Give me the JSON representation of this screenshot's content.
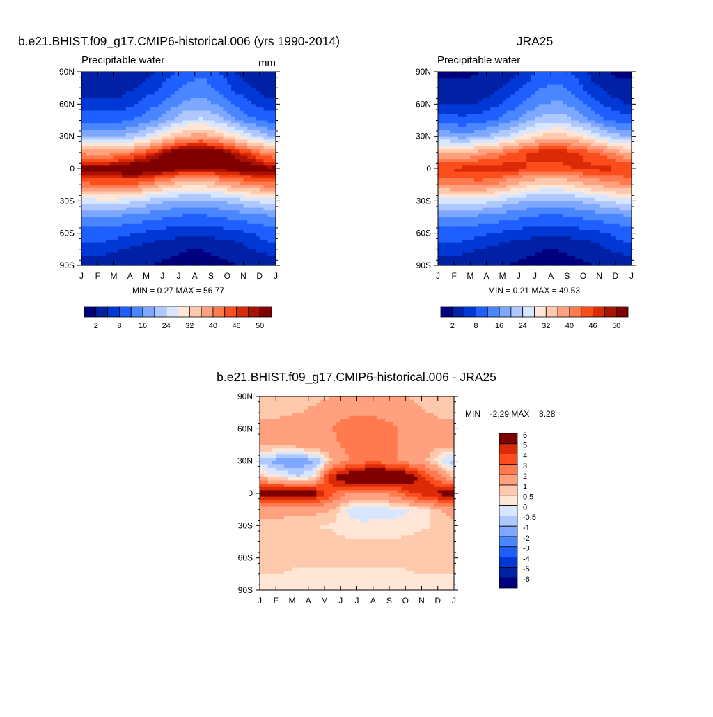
{
  "colors": {
    "scale": [
      "#00007f",
      "#0020a6",
      "#0038d6",
      "#1f5fff",
      "#4a86ff",
      "#7ea8ff",
      "#afc8ff",
      "#d8e7ff",
      "#ffe6d6",
      "#ffc9ad",
      "#ffa07f",
      "#ff7b4f",
      "#fb4e1c",
      "#dc2a06",
      "#ac1202",
      "#7f0000"
    ],
    "diff_scale": [
      "#00007f",
      "#0020a6",
      "#0038d6",
      "#1f5fff",
      "#4a86ff",
      "#7ea8ff",
      "#afc8ff",
      "#d8e7ff",
      "#ffe6d6",
      "#ffc9ad",
      "#ffa07f",
      "#ff7b4f",
      "#fb4e1c",
      "#dc2a06",
      "#7f0000"
    ]
  },
  "panels": {
    "model": {
      "title": "b.e21.BHIST.f09_g17.CMIP6-historical.006 (yrs 1990-2014)",
      "variable": "Precipitable water",
      "units": "mm",
      "minmax": "MIN =   0.27 MAX =  56.77"
    },
    "obs": {
      "title": "JRA25",
      "variable": "Precipitable water",
      "minmax": "MIN =   0.21 MAX =  49.53"
    },
    "diff": {
      "title": "b.e21.BHIST.f09_g17.CMIP6-historical.006 - JRA25",
      "minmax": "MIN =  -2.29 MAX =   8.28"
    }
  },
  "chart_data": [
    {
      "type": "heatmap",
      "title": "b.e21.BHIST.f09_g17.CMIP6-historical.006 (yrs 1990-2014)",
      "subtitle": "Precipitable water",
      "units": "mm",
      "x_ticks": [
        "J",
        "F",
        "M",
        "A",
        "M",
        "J",
        "J",
        "A",
        "S",
        "O",
        "N",
        "D",
        "J"
      ],
      "y_ticks": [
        "90N",
        "60N",
        "30N",
        "0",
        "30S",
        "60S",
        "90S"
      ],
      "ylim": [
        -90,
        90
      ],
      "colorbar_labels": [
        "2",
        "8",
        "16",
        "24",
        "32",
        "40",
        "46",
        "50"
      ],
      "zonal_mean_by_month": {
        "months": [
          "J",
          "F",
          "M",
          "A",
          "M",
          "J",
          "J",
          "A",
          "S",
          "O",
          "N",
          "D"
        ],
        "lat": [
          -90,
          -75,
          -60,
          -45,
          -30,
          -15,
          0,
          15,
          30,
          45,
          60,
          75,
          90
        ],
        "values": [
          [
            3,
            6,
            10,
            15,
            26,
            42,
            52,
            38,
            20,
            11,
            6,
            3,
            2
          ],
          [
            3,
            6,
            10,
            15,
            27,
            43,
            52,
            38,
            19,
            10,
            6,
            3,
            2
          ],
          [
            2,
            5,
            9,
            15,
            26,
            43,
            53,
            40,
            20,
            11,
            6,
            4,
            2
          ],
          [
            2,
            4,
            8,
            14,
            24,
            42,
            54,
            43,
            23,
            13,
            8,
            5,
            3
          ],
          [
            2,
            3,
            7,
            13,
            22,
            38,
            54,
            47,
            27,
            16,
            11,
            7,
            5
          ],
          [
            1,
            3,
            6,
            12,
            20,
            35,
            52,
            52,
            33,
            20,
            14,
            10,
            7
          ],
          [
            1,
            2,
            6,
            11,
            19,
            33,
            50,
            55,
            37,
            24,
            17,
            13,
            10
          ],
          [
            1,
            2,
            6,
            11,
            19,
            33,
            50,
            55,
            38,
            25,
            18,
            14,
            11
          ],
          [
            1,
            3,
            6,
            12,
            20,
            35,
            51,
            53,
            35,
            22,
            15,
            11,
            8
          ],
          [
            2,
            3,
            7,
            13,
            22,
            38,
            52,
            49,
            30,
            17,
            11,
            7,
            5
          ],
          [
            2,
            5,
            8,
            14,
            24,
            40,
            52,
            45,
            25,
            13,
            8,
            5,
            3
          ],
          [
            3,
            6,
            10,
            15,
            26,
            42,
            51,
            40,
            21,
            11,
            6,
            3,
            2
          ]
        ]
      },
      "min": 0.27,
      "max": 56.77
    },
    {
      "type": "heatmap",
      "title": "JRA25",
      "subtitle": "Precipitable water",
      "x_ticks": [
        "J",
        "F",
        "M",
        "A",
        "M",
        "J",
        "J",
        "A",
        "S",
        "O",
        "N",
        "D",
        "J"
      ],
      "y_ticks": [
        "90N",
        "60N",
        "30N",
        "0",
        "30S",
        "60S",
        "90S"
      ],
      "ylim": [
        -90,
        90
      ],
      "colorbar_labels": [
        "2",
        "8",
        "16",
        "24",
        "32",
        "40",
        "46",
        "50"
      ],
      "zonal_mean_by_month": {
        "months": [
          "J",
          "F",
          "M",
          "A",
          "M",
          "J",
          "J",
          "A",
          "S",
          "O",
          "N",
          "D"
        ],
        "lat": [
          -90,
          -75,
          -60,
          -45,
          -30,
          -15,
          0,
          15,
          30,
          45,
          60,
          75,
          90
        ],
        "values": [
          [
            3,
            6,
            10,
            15,
            26,
            40,
            46,
            36,
            19,
            10,
            5,
            3,
            1
          ],
          [
            3,
            6,
            10,
            15,
            26,
            41,
            47,
            36,
            18,
            9,
            5,
            3,
            1
          ],
          [
            2,
            5,
            9,
            15,
            26,
            41,
            48,
            38,
            19,
            10,
            5,
            3,
            2
          ],
          [
            2,
            4,
            8,
            14,
            24,
            40,
            48,
            40,
            22,
            12,
            7,
            4,
            3
          ],
          [
            2,
            3,
            7,
            13,
            22,
            36,
            48,
            43,
            25,
            15,
            10,
            6,
            4
          ],
          [
            1,
            3,
            6,
            12,
            20,
            33,
            46,
            46,
            30,
            19,
            13,
            9,
            6
          ],
          [
            1,
            2,
            6,
            11,
            19,
            31,
            45,
            48,
            33,
            22,
            16,
            12,
            9
          ],
          [
            1,
            2,
            6,
            11,
            19,
            31,
            45,
            48,
            34,
            23,
            17,
            13,
            10
          ],
          [
            1,
            3,
            6,
            12,
            20,
            33,
            46,
            47,
            32,
            20,
            14,
            10,
            7
          ],
          [
            2,
            3,
            7,
            13,
            22,
            36,
            47,
            44,
            28,
            16,
            10,
            6,
            4
          ],
          [
            2,
            5,
            8,
            14,
            24,
            38,
            47,
            41,
            23,
            12,
            7,
            4,
            2
          ],
          [
            3,
            6,
            10,
            15,
            26,
            40,
            46,
            37,
            20,
            10,
            5,
            3,
            1
          ]
        ]
      },
      "min": 0.21,
      "max": 49.53
    },
    {
      "type": "heatmap",
      "title": "b.e21.BHIST.f09_g17.CMIP6-historical.006 - JRA25",
      "x_ticks": [
        "J",
        "F",
        "M",
        "A",
        "M",
        "J",
        "J",
        "A",
        "S",
        "O",
        "N",
        "D",
        "J"
      ],
      "y_ticks": [
        "90N",
        "60N",
        "30N",
        "0",
        "30S",
        "60S",
        "90S"
      ],
      "ylim": [
        -90,
        90
      ],
      "colorbar_labels": [
        "6",
        "5",
        "4",
        "3",
        "2",
        "1",
        "0.5",
        "0",
        "-0.5",
        "-1",
        "-2",
        "-3",
        "-4",
        "-5",
        "-6"
      ],
      "zonal_mean_by_month": {
        "months": [
          "J",
          "F",
          "M",
          "A",
          "M",
          "J",
          "J",
          "A",
          "S",
          "O",
          "N",
          "D"
        ],
        "lat": [
          -90,
          -75,
          -60,
          -45,
          -30,
          -15,
          0,
          15,
          30,
          45,
          60,
          75,
          90
        ],
        "values": [
          [
            0.3,
            0.5,
            0.6,
            0.7,
            0.8,
            1.5,
            5.5,
            0.5,
            -1.0,
            1.2,
            1.2,
            0.8,
            0.6
          ],
          [
            0.3,
            0.5,
            0.6,
            0.7,
            0.6,
            1.4,
            6.0,
            0.0,
            -1.5,
            1.2,
            1.3,
            0.9,
            0.6
          ],
          [
            0.2,
            0.4,
            0.6,
            0.8,
            0.6,
            1.3,
            6.0,
            -0.5,
            -1.5,
            1.3,
            1.4,
            1.0,
            0.7
          ],
          [
            0.2,
            0.4,
            0.6,
            0.8,
            0.5,
            1.2,
            5.5,
            0.5,
            -1.0,
            1.5,
            1.6,
            1.2,
            0.8
          ],
          [
            0.2,
            0.4,
            0.6,
            0.7,
            0.4,
            1.0,
            3.0,
            5.0,
            1.0,
            1.8,
            2.0,
            1.5,
            1.0
          ],
          [
            0.2,
            0.4,
            0.6,
            0.6,
            0.2,
            -0.2,
            2.0,
            6.5,
            2.0,
            2.2,
            2.5,
            1.8,
            1.2
          ],
          [
            0.2,
            0.4,
            0.6,
            0.6,
            0.1,
            -0.3,
            2.0,
            7.5,
            2.5,
            2.5,
            2.8,
            1.8,
            1.3
          ],
          [
            0.2,
            0.4,
            0.6,
            0.6,
            0.2,
            -0.3,
            2.0,
            8.0,
            2.5,
            2.4,
            2.5,
            1.7,
            1.2
          ],
          [
            0.3,
            0.4,
            0.6,
            0.6,
            0.2,
            -0.2,
            2.5,
            7.0,
            2.0,
            2.0,
            2.0,
            1.5,
            1.1
          ],
          [
            0.3,
            0.5,
            0.6,
            0.7,
            0.3,
            0.0,
            4.0,
            5.5,
            1.5,
            1.6,
            1.6,
            1.2,
            0.9
          ],
          [
            0.3,
            0.5,
            0.6,
            0.7,
            0.5,
            0.5,
            5.0,
            3.5,
            0.8,
            1.3,
            1.3,
            1.0,
            0.7
          ],
          [
            0.3,
            0.5,
            0.6,
            0.7,
            0.7,
            1.2,
            5.5,
            1.5,
            -0.5,
            1.2,
            1.2,
            0.8,
            0.6
          ]
        ]
      },
      "min": -2.29,
      "max": 8.28
    }
  ]
}
